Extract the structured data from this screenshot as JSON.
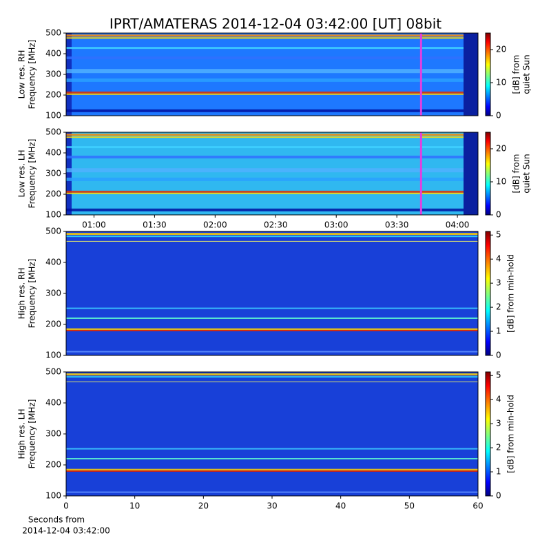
{
  "title": "IPRT/AMATERAS 2014-12-04 03:42:00 [UT]   08bit",
  "chart_data": [
    {
      "type": "spectrogram",
      "ylabel": [
        "Low res. RH",
        "Frequency [MHz]"
      ],
      "ylim": [
        100,
        500
      ],
      "yticks": [
        100,
        200,
        300,
        400,
        500
      ],
      "xlim": [
        0.77,
        4.17
      ],
      "marker_x": 3.7,
      "marker_color": "#e040e0",
      "colorbar": {
        "label": [
          "[dB] from",
          "quiet Sun"
        ],
        "lim": [
          0,
          25
        ],
        "ticks": [
          0,
          10,
          20
        ]
      }
    },
    {
      "type": "spectrogram",
      "ylabel": [
        "Low res. LH",
        "Frequency [MHz]"
      ],
      "ylim": [
        100,
        500
      ],
      "yticks": [
        100,
        200,
        300,
        400,
        500
      ],
      "xlim": [
        0.77,
        4.17
      ],
      "xticks": [
        {
          "value": 1,
          "label": "01:00"
        },
        {
          "value": 1.5,
          "label": "01:30"
        },
        {
          "value": 2,
          "label": "02:00"
        },
        {
          "value": 2.5,
          "label": "02:30"
        },
        {
          "value": 3,
          "label": "03:00"
        },
        {
          "value": 3.5,
          "label": "03:30"
        },
        {
          "value": 4,
          "label": "04:00"
        }
      ],
      "marker_x": 3.7,
      "marker_color": "#e040e0",
      "colorbar": {
        "label": [
          "[dB] from",
          "quiet Sun"
        ],
        "lim": [
          0,
          25
        ],
        "ticks": [
          0,
          10,
          20
        ]
      }
    },
    {
      "type": "spectrogram",
      "ylabel": [
        "High res. RH",
        "Frequency [MHz]"
      ],
      "ylim": [
        100,
        500
      ],
      "yticks": [
        100,
        200,
        300,
        400,
        500
      ],
      "xlim": [
        0,
        60
      ],
      "colorbar": {
        "label": [
          "[dB] from min-hold"
        ],
        "lim": [
          0,
          5.15
        ],
        "ticks": [
          0,
          1,
          2,
          3,
          4,
          5
        ]
      }
    },
    {
      "type": "spectrogram",
      "ylabel": [
        "High res. LH",
        "Frequency [MHz]"
      ],
      "ylim": [
        100,
        500
      ],
      "yticks": [
        100,
        200,
        300,
        400,
        500
      ],
      "xlim": [
        0,
        60
      ],
      "xticks": [
        0,
        10,
        20,
        30,
        40,
        50,
        60
      ],
      "xlabel": [
        "Seconds from",
        "2014-12-04 03:42:00"
      ],
      "colorbar": {
        "label": [
          "[dB] from min-hold"
        ],
        "lim": [
          0,
          5.15
        ],
        "ticks": [
          0,
          1,
          2,
          3,
          4,
          5
        ]
      }
    }
  ]
}
